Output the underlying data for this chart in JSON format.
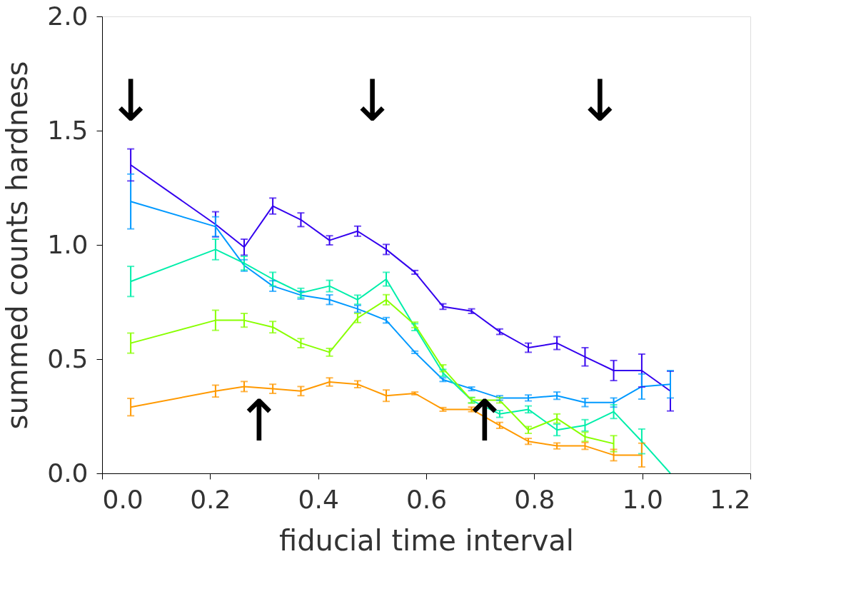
{
  "chart_data": {
    "type": "line",
    "xlabel": "fiducial time interval",
    "ylabel": "summed counts hardness",
    "x": [
      0.053,
      0.21,
      0.263,
      0.316,
      0.368,
      0.421,
      0.473,
      0.526,
      0.579,
      0.631,
      0.684,
      0.736,
      0.789,
      0.842,
      0.894,
      0.947,
      0.999,
      1.052
    ],
    "series": [
      {
        "color": "#3300ee",
        "values": [
          1.35,
          1.09,
          0.99,
          1.17,
          1.11,
          1.02,
          1.06,
          0.98,
          0.88,
          0.73,
          0.71,
          0.62,
          0.55,
          0.57,
          0.51,
          0.45,
          0.45,
          0.36
        ],
        "errors": [
          0.07,
          0.055,
          0.035,
          0.035,
          0.03,
          0.02,
          0.022,
          0.022,
          0.008,
          0.012,
          0.01,
          0.012,
          0.02,
          0.028,
          0.04,
          0.044,
          0.072,
          0.087
        ]
      },
      {
        "color": "#0099ff",
        "values": [
          1.19,
          1.08,
          0.91,
          0.82,
          0.78,
          0.76,
          0.72,
          0.67,
          0.53,
          0.41,
          0.37,
          0.33,
          0.33,
          0.34,
          0.31,
          0.31,
          0.38,
          0.39
        ],
        "errors": [
          0.12,
          0.043,
          0.025,
          0.023,
          0.017,
          0.021,
          0.015,
          0.012,
          0.005,
          0.008,
          0.008,
          0.01,
          0.013,
          0.016,
          0.018,
          0.02,
          0.055,
          0.06
        ]
      },
      {
        "color": "#00eeaa",
        "values": [
          0.84,
          0.98,
          0.92,
          0.85,
          0.79,
          0.82,
          0.76,
          0.85,
          0.64,
          0.44,
          0.32,
          0.26,
          0.28,
          0.19,
          0.21,
          0.27,
          0.14,
          0.0
        ],
        "errors": [
          0.066,
          0.045,
          0.03,
          0.03,
          0.02,
          0.025,
          0.02,
          0.03,
          0.015,
          0.015,
          0.012,
          0.015,
          0.015,
          0.025,
          0.025,
          0.03,
          0.054,
          null
        ]
      },
      {
        "color": "#88ff00",
        "values": [
          0.57,
          0.67,
          0.67,
          0.64,
          0.57,
          0.53,
          0.68,
          0.76,
          0.65,
          0.46,
          0.32,
          0.32,
          0.19,
          0.24,
          0.16,
          0.13,
          null,
          null
        ],
        "errors": [
          0.044,
          0.044,
          0.03,
          0.025,
          0.02,
          0.017,
          0.02,
          0.022,
          0.012,
          0.015,
          0.012,
          0.012,
          0.015,
          0.02,
          0.02,
          0.035,
          null,
          null
        ]
      },
      {
        "color": "#ff9900",
        "values": [
          0.29,
          0.36,
          0.38,
          0.37,
          0.36,
          0.4,
          0.39,
          0.34,
          0.35,
          0.28,
          0.28,
          0.21,
          0.14,
          0.12,
          0.12,
          0.08,
          0.08,
          null
        ],
        "errors": [
          0.038,
          0.026,
          0.022,
          0.02,
          0.02,
          0.018,
          0.015,
          0.025,
          0.006,
          0.008,
          0.01,
          0.013,
          0.013,
          0.013,
          0.015,
          0.025,
          0.052,
          null
        ]
      }
    ],
    "xlim": [
      0.0,
      1.2
    ],
    "ylim": [
      0.0,
      2.0
    ],
    "xticks": [
      {
        "value": 0,
        "label": "0.0"
      },
      0.2,
      0.4,
      0.6,
      0.8,
      {
        "value": 1,
        "label": "1.0"
      },
      1.2
    ],
    "yticks": [
      {
        "value": 0,
        "label": "0.0"
      },
      0.5,
      {
        "value": 1,
        "label": "1.0"
      },
      1.5,
      {
        "value": 2,
        "label": "2.0"
      }
    ],
    "annotations": [
      "↓",
      "↓",
      "↓",
      "↑",
      "↑"
    ],
    "grid": false,
    "legend": false,
    "marker": "none",
    "line_style": "solid"
  }
}
